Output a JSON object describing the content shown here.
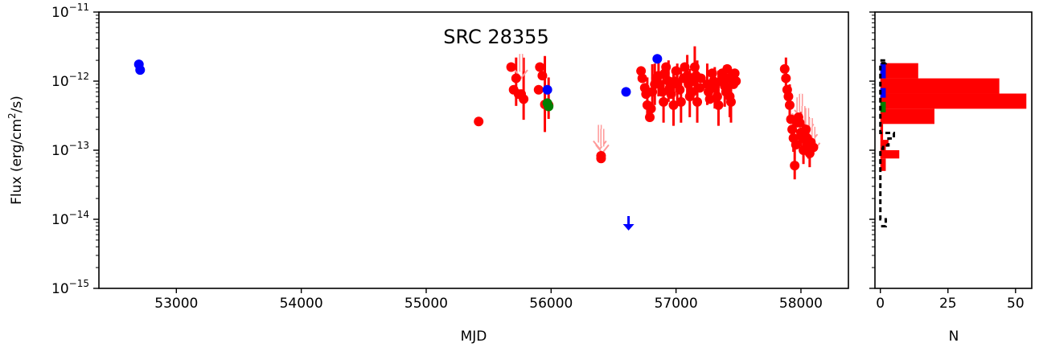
{
  "chart_data": [
    {
      "type": "scatter",
      "title": "SRC 28355",
      "xlabel": "MJD",
      "ylabel": "Flux (erg/cm²/s)",
      "xlim": [
        52380,
        58380
      ],
      "ylim_log10": [
        -15,
        -11
      ],
      "x_ticks": [
        53000,
        54000,
        55000,
        56000,
        57000,
        58000
      ],
      "y_ticks_exp": [
        -11,
        -12,
        -13,
        -14,
        -15
      ],
      "y_tick_base": "10",
      "colors": {
        "red": "#ff0000",
        "blue": "#0000ff",
        "green": "#007f00",
        "pink": "#ff9999",
        "axis": "#000000"
      },
      "series": [
        {
          "color": "red",
          "points": [
            [
              55420,
              2.6e-13,
              0,
              0
            ],
            [
              55680,
              1.6e-12,
              0,
              0
            ],
            [
              55700,
              7.5e-13,
              0,
              0
            ],
            [
              55720,
              1.1e-12,
              0.4,
              0.3
            ],
            [
              55740,
              6.5e-13,
              0,
              0
            ],
            [
              55760,
              6.5e-13,
              0,
              0
            ],
            [
              55780,
              5.5e-13,
              0.3,
              0.6
            ],
            [
              55900,
              7.5e-13,
              0,
              0
            ],
            [
              55910,
              1.6e-12,
              0,
              0
            ],
            [
              55930,
              1.2e-12,
              0,
              0
            ],
            [
              55950,
              4.6e-13,
              0.4,
              0.7
            ],
            [
              55980,
              4.5e-13,
              0.2,
              0.4
            ],
            [
              56400,
              8.3e-14,
              0,
              0
            ],
            [
              56400,
              7.6e-14,
              0,
              0
            ],
            [
              56720,
              1.4e-12,
              0,
              0
            ],
            [
              56730,
              1.1e-12,
              0,
              0
            ],
            [
              56750,
              8e-13,
              0,
              0
            ],
            [
              56760,
              6.5e-13,
              0,
              0
            ],
            [
              56770,
              4.5e-13,
              0.2,
              0.4
            ],
            [
              56790,
              3e-13,
              0,
              0
            ],
            [
              56800,
              4e-13,
              0,
              0
            ],
            [
              56810,
              7e-13,
              0.3,
              0.4
            ],
            [
              56830,
              9e-13,
              0.3,
              0.3
            ],
            [
              56840,
              1.1e-12,
              0,
              0
            ],
            [
              56860,
              1.2e-12,
              0.3,
              0.3
            ],
            [
              56870,
              9e-13,
              0,
              0
            ],
            [
              56890,
              7e-13,
              0,
              0
            ],
            [
              56900,
              5e-13,
              0.3,
              0.4
            ],
            [
              56910,
              1.3e-12,
              0,
              0
            ],
            [
              56920,
              1.6e-12,
              0,
              0
            ],
            [
              56940,
              1e-12,
              0.3,
              0.3
            ],
            [
              56950,
              8e-13,
              0,
              0
            ],
            [
              56960,
              6.5e-13,
              0,
              0
            ],
            [
              56980,
              4.5e-13,
              0.3,
              0.5
            ],
            [
              56990,
              1e-12,
              0,
              0
            ],
            [
              57000,
              1.4e-12,
              0,
              0
            ],
            [
              57010,
              9e-13,
              0.3,
              0.3
            ],
            [
              57030,
              7.5e-13,
              0,
              0
            ],
            [
              57040,
              5e-13,
              0.3,
              0.5
            ],
            [
              57060,
              1.1e-12,
              0,
              0
            ],
            [
              57070,
              1.6e-12,
              0,
              0
            ],
            [
              57090,
              1.2e-12,
              0.3,
              0.3
            ],
            [
              57100,
              9e-13,
              0,
              0
            ],
            [
              57110,
              6e-13,
              0.3,
              0.4
            ],
            [
              57130,
              7e-13,
              0,
              0
            ],
            [
              57140,
              1e-12,
              0,
              0
            ],
            [
              57150,
              1.6e-12,
              0.4,
              0.3
            ],
            [
              57160,
              1.2e-12,
              0,
              0
            ],
            [
              57170,
              5e-13,
              0.3,
              0.6
            ],
            [
              57190,
              8e-13,
              0,
              0
            ],
            [
              57200,
              1.1e-12,
              0,
              0
            ],
            [
              57250,
              9e-13,
              0.3,
              0.3
            ],
            [
              57260,
              7e-13,
              0,
              0
            ],
            [
              57270,
              5.5e-13,
              0,
              0
            ],
            [
              57290,
              1.3e-12,
              0,
              0
            ],
            [
              57300,
              1e-12,
              0,
              0
            ],
            [
              57310,
              8e-13,
              0.3,
              0.3
            ],
            [
              57330,
              6e-13,
              0,
              0
            ],
            [
              57340,
              4.5e-13,
              0.3,
              0.5
            ],
            [
              57360,
              1e-12,
              0,
              0
            ],
            [
              57370,
              1.3e-12,
              0,
              0
            ],
            [
              57390,
              8.5e-13,
              0.3,
              0.3
            ],
            [
              57400,
              7e-13,
              0,
              0
            ],
            [
              57410,
              1.5e-12,
              0,
              0
            ],
            [
              57420,
              1.1e-12,
              0,
              0
            ],
            [
              57430,
              6e-13,
              0.3,
              0.4
            ],
            [
              57440,
              5e-13,
              0.3,
              0.4
            ],
            [
              57460,
              9e-13,
              0,
              0
            ],
            [
              57470,
              1.3e-12,
              0,
              0
            ],
            [
              57480,
              1e-12,
              0,
              0
            ],
            [
              57870,
              1.5e-12,
              0,
              0
            ],
            [
              57880,
              1.1e-12,
              0.3,
              0.3
            ],
            [
              57890,
              7.5e-13,
              0,
              0
            ],
            [
              57900,
              6e-13,
              0,
              0
            ],
            [
              57910,
              4.5e-13,
              0.2,
              0.3
            ],
            [
              57920,
              2.8e-13,
              0,
              0
            ],
            [
              57930,
              2e-13,
              0,
              0
            ],
            [
              57940,
              1.5e-13,
              0.2,
              0.3
            ],
            [
              57950,
              6e-14,
              0.2,
              0.4
            ],
            [
              57960,
              1.2e-13,
              0,
              0
            ],
            [
              57970,
              2.5e-13,
              0,
              0
            ],
            [
              57980,
              3e-13,
              0,
              0
            ],
            [
              57990,
              2.5e-13,
              0,
              0
            ],
            [
              58000,
              1.8e-13,
              0.2,
              0.3
            ],
            [
              58010,
              1.5e-13,
              0,
              0
            ],
            [
              58020,
              1e-13,
              0.2,
              0.4
            ],
            [
              58040,
              2e-13,
              0.2,
              0.3
            ],
            [
              58050,
              1.5e-13,
              0,
              0
            ],
            [
              58060,
              1.2e-13,
              0.2,
              0.4
            ],
            [
              58070,
              9e-14,
              0.2,
              0.4
            ],
            [
              58080,
              1.3e-13,
              0,
              0
            ],
            [
              58100,
              1.1e-13,
              0,
              0
            ]
          ]
        },
        {
          "color": "blue",
          "points": [
            [
              52700,
              1.75e-12,
              0,
              0
            ],
            [
              52710,
              1.45e-12,
              0,
              0
            ],
            [
              55970,
              7.5e-13,
              0,
              0
            ],
            [
              56600,
              7e-13,
              0,
              0
            ],
            [
              56850,
              2.1e-12,
              0,
              0
            ]
          ]
        },
        {
          "color": "green",
          "points": [
            [
              55980,
              4.3e-13,
              0,
              0
            ],
            [
              55970,
              4.8e-13,
              0,
              0
            ]
          ]
        }
      ],
      "upper_limits": [
        {
          "color": "blue",
          "x": 56620,
          "y": 1e-14
        },
        {
          "color": "pink",
          "x": 55760,
          "y": 1.7e-12
        },
        {
          "color": "pink",
          "x": 56390,
          "y": 1.6e-13
        },
        {
          "color": "pink",
          "x": 56410,
          "y": 1.4e-13
        },
        {
          "color": "pink",
          "x": 57980,
          "y": 4e-13
        },
        {
          "color": "pink",
          "x": 58000,
          "y": 4.5e-13
        },
        {
          "color": "pink",
          "x": 58020,
          "y": 3e-13
        },
        {
          "color": "pink",
          "x": 58050,
          "y": 2.8e-13
        },
        {
          "color": "pink",
          "x": 58080,
          "y": 2e-13
        },
        {
          "color": "pink",
          "x": 58100,
          "y": 1.5e-13
        }
      ]
    },
    {
      "type": "bar",
      "orientation": "horizontal",
      "xlabel": "N",
      "xlim": [
        -2,
        56
      ],
      "x_ticks": [
        0,
        25,
        50
      ],
      "ylim_log10": [
        -15,
        -11
      ],
      "colors": {
        "red": "#ff0000",
        "blue": "#0000ff",
        "green": "#007f00",
        "black": "#000000"
      },
      "red_hist": [
        {
          "lo": -12.62,
          "hi": -12.4,
          "count": 20
        },
        {
          "lo": -12.4,
          "hi": -12.18,
          "count": 54
        },
        {
          "lo": -12.18,
          "hi": -11.96,
          "count": 44
        },
        {
          "lo": -11.96,
          "hi": -11.74,
          "count": 14
        },
        {
          "lo": -12.85,
          "hi": -12.62,
          "count": 1
        },
        {
          "lo": -12.95,
          "hi": -12.85,
          "count": 3
        },
        {
          "lo": -13.1,
          "hi": -12.95,
          "count": 2
        },
        {
          "lo": -13.12,
          "hi": -13.0,
          "count": 7
        },
        {
          "lo": -13.3,
          "hi": -13.12,
          "count": 2
        }
      ],
      "blue_hist": [
        {
          "lo": -11.96,
          "hi": -11.74,
          "count": 2
        },
        {
          "lo": -12.24,
          "hi": -12.1,
          "count": 2
        }
      ],
      "green_hist": [
        {
          "lo": -12.45,
          "hi": -12.3,
          "count": 2
        }
      ],
      "black_step": [
        [
          0,
          -11.7
        ],
        [
          2,
          -11.7
        ],
        [
          2,
          -11.74
        ],
        [
          0,
          -11.74
        ],
        [
          0,
          -12.75
        ],
        [
          5,
          -12.75
        ],
        [
          5,
          -12.83
        ],
        [
          3,
          -12.83
        ],
        [
          3,
          -12.93
        ],
        [
          1,
          -12.93
        ],
        [
          1,
          -12.98
        ],
        [
          0,
          -12.98
        ],
        [
          0,
          -14.0
        ],
        [
          2,
          -14.0
        ],
        [
          2,
          -14.1
        ],
        [
          0,
          -14.1
        ]
      ]
    }
  ]
}
